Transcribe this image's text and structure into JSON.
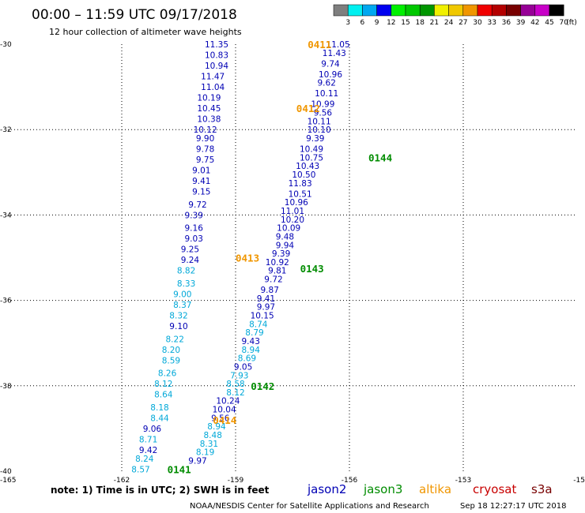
{
  "header": {
    "title": "00:00 – 11:59 UTC 09/17/2018",
    "subtitle": "12 hour collection of altimeter wave heights"
  },
  "color_scale": {
    "unit_label": "(ft)",
    "swatches": [
      {
        "label": "3",
        "color": "#7f7f7f"
      },
      {
        "label": "6",
        "color": "#00f0f0"
      },
      {
        "label": "9",
        "color": "#00a8f0"
      },
      {
        "label": "12",
        "color": "#0000f0"
      },
      {
        "label": "15",
        "color": "#00f000"
      },
      {
        "label": "18",
        "color": "#00c800"
      },
      {
        "label": "21",
        "color": "#009600"
      },
      {
        "label": "24",
        "color": "#f0f000"
      },
      {
        "label": "27",
        "color": "#f0c800"
      },
      {
        "label": "30",
        "color": "#f09600"
      },
      {
        "label": "33",
        "color": "#f00000"
      },
      {
        "label": "36",
        "color": "#b40000"
      },
      {
        "label": "39",
        "color": "#780000"
      },
      {
        "label": "42",
        "color": "#960096"
      },
      {
        "label": "45",
        "color": "#c800c8"
      },
      {
        "label": "70",
        "color": "#000000"
      }
    ]
  },
  "axes": {
    "x_ticks": [
      "-165",
      "-162",
      "-159",
      "-156",
      "-153",
      "-15"
    ],
    "y_ticks": [
      "-30",
      "-32",
      "-34",
      "-36",
      "-38",
      "-40"
    ]
  },
  "satellite_colors": {
    "jason2": "#0000b4",
    "jason3": "#008c00",
    "altika": "#f09600",
    "cryosat": "#c80000",
    "s3a": "#780000",
    "light": "#00a8d8"
  },
  "chart_data": {
    "type": "scatter",
    "xlim": [
      -165,
      -150
    ],
    "ylim": [
      -40,
      -30
    ],
    "grid": true,
    "unit": "ft",
    "points": [
      {
        "lon": -159.5,
        "lat": -30.0,
        "v": "11.35",
        "c": "jason2"
      },
      {
        "lon": -159.5,
        "lat": -30.25,
        "v": "10.83",
        "c": "jason2"
      },
      {
        "lon": -159.5,
        "lat": -30.5,
        "v": "10.94",
        "c": "jason2"
      },
      {
        "lon": -159.6,
        "lat": -30.75,
        "v": "11.47",
        "c": "jason2"
      },
      {
        "lon": -159.6,
        "lat": -31.0,
        "v": "11.04",
        "c": "jason2"
      },
      {
        "lon": -159.7,
        "lat": -31.25,
        "v": "10.19",
        "c": "jason2"
      },
      {
        "lon": -159.7,
        "lat": -31.5,
        "v": "10.45",
        "c": "jason2"
      },
      {
        "lon": -159.7,
        "lat": -31.75,
        "v": "10.38",
        "c": "jason2"
      },
      {
        "lon": -159.8,
        "lat": -32.0,
        "v": "10.12",
        "c": "jason2"
      },
      {
        "lon": -159.8,
        "lat": -32.2,
        "v": "9.90",
        "c": "jason2"
      },
      {
        "lon": -159.8,
        "lat": -32.45,
        "v": "9.78",
        "c": "jason2"
      },
      {
        "lon": -159.8,
        "lat": -32.7,
        "v": "9.75",
        "c": "jason2"
      },
      {
        "lon": -159.9,
        "lat": -32.95,
        "v": "9.01",
        "c": "jason2"
      },
      {
        "lon": -159.9,
        "lat": -33.2,
        "v": "9.41",
        "c": "jason2"
      },
      {
        "lon": -159.9,
        "lat": -33.45,
        "v": "9.15",
        "c": "jason2"
      },
      {
        "lon": -160.0,
        "lat": -33.75,
        "v": "9.72",
        "c": "jason2"
      },
      {
        "lon": -160.1,
        "lat": -34.0,
        "v": "9.39",
        "c": "jason2"
      },
      {
        "lon": -160.1,
        "lat": -34.3,
        "v": "9.16",
        "c": "jason2"
      },
      {
        "lon": -160.1,
        "lat": -34.55,
        "v": "9.03",
        "c": "jason2"
      },
      {
        "lon": -160.2,
        "lat": -34.8,
        "v": "9.25",
        "c": "jason2"
      },
      {
        "lon": -160.2,
        "lat": -35.05,
        "v": "9.24",
        "c": "jason2"
      },
      {
        "lon": -160.3,
        "lat": -35.3,
        "v": "8.82",
        "c": "light"
      },
      {
        "lon": -160.3,
        "lat": -35.6,
        "v": "8.33",
        "c": "light"
      },
      {
        "lon": -160.4,
        "lat": -35.85,
        "v": "9.00",
        "c": "light"
      },
      {
        "lon": -160.4,
        "lat": -36.1,
        "v": "8.37",
        "c": "light"
      },
      {
        "lon": -160.5,
        "lat": -36.35,
        "v": "8.32",
        "c": "light"
      },
      {
        "lon": -160.5,
        "lat": -36.6,
        "v": "9.10",
        "c": "jason2"
      },
      {
        "lon": -160.6,
        "lat": -36.9,
        "v": "8.22",
        "c": "light"
      },
      {
        "lon": -160.7,
        "lat": -37.15,
        "v": "8.20",
        "c": "light"
      },
      {
        "lon": -160.7,
        "lat": -37.4,
        "v": "8.59",
        "c": "light"
      },
      {
        "lon": -160.8,
        "lat": -37.7,
        "v": "8.26",
        "c": "light"
      },
      {
        "lon": -160.9,
        "lat": -37.95,
        "v": "8.12",
        "c": "light"
      },
      {
        "lon": -160.9,
        "lat": -38.2,
        "v": "8.64",
        "c": "light"
      },
      {
        "lon": -161.0,
        "lat": -38.5,
        "v": "8.18",
        "c": "light"
      },
      {
        "lon": -161.0,
        "lat": -38.75,
        "v": "8.44",
        "c": "light"
      },
      {
        "lon": -161.2,
        "lat": -39.0,
        "v": "9.06",
        "c": "jason2"
      },
      {
        "lon": -161.3,
        "lat": -39.25,
        "v": "8.71",
        "c": "light"
      },
      {
        "lon": -161.3,
        "lat": -39.5,
        "v": "9.42",
        "c": "jason2"
      },
      {
        "lon": -161.4,
        "lat": -39.7,
        "v": "8.24",
        "c": "light"
      },
      {
        "lon": -161.5,
        "lat": -39.95,
        "v": "8.57",
        "c": "light"
      },
      {
        "lon": -156.3,
        "lat": -30.0,
        "v": "11.05",
        "c": "jason2"
      },
      {
        "lon": -156.4,
        "lat": -30.2,
        "v": "11.43",
        "c": "jason2"
      },
      {
        "lon": -156.5,
        "lat": -30.45,
        "v": "9.74",
        "c": "jason2"
      },
      {
        "lon": -156.5,
        "lat": -30.7,
        "v": "10.96",
        "c": "jason2"
      },
      {
        "lon": -156.6,
        "lat": -30.9,
        "v": "9.62",
        "c": "jason2"
      },
      {
        "lon": -156.6,
        "lat": -31.15,
        "v": "10.11",
        "c": "jason2"
      },
      {
        "lon": -156.7,
        "lat": -31.4,
        "v": "10.99",
        "c": "jason2"
      },
      {
        "lon": -156.7,
        "lat": -31.6,
        "v": "9.56",
        "c": "jason2"
      },
      {
        "lon": -156.8,
        "lat": -31.8,
        "v": "10.11",
        "c": "jason2"
      },
      {
        "lon": -156.8,
        "lat": -32.0,
        "v": "10.10",
        "c": "jason2"
      },
      {
        "lon": -156.9,
        "lat": -32.2,
        "v": "9.39",
        "c": "jason2"
      },
      {
        "lon": -157.0,
        "lat": -32.45,
        "v": "10.49",
        "c": "jason2"
      },
      {
        "lon": -157.0,
        "lat": -32.65,
        "v": "10.75",
        "c": "jason2"
      },
      {
        "lon": -157.1,
        "lat": -32.85,
        "v": "10.43",
        "c": "jason2"
      },
      {
        "lon": -157.2,
        "lat": -33.05,
        "v": "10.50",
        "c": "jason2"
      },
      {
        "lon": -157.3,
        "lat": -33.25,
        "v": "11.83",
        "c": "jason2"
      },
      {
        "lon": -157.3,
        "lat": -33.5,
        "v": "10.51",
        "c": "jason2"
      },
      {
        "lon": -157.4,
        "lat": -33.7,
        "v": "10.96",
        "c": "jason2"
      },
      {
        "lon": -157.5,
        "lat": -33.9,
        "v": "11.01",
        "c": "jason2"
      },
      {
        "lon": -157.5,
        "lat": -34.1,
        "v": "10.20",
        "c": "jason2"
      },
      {
        "lon": -157.6,
        "lat": -34.3,
        "v": "10.09",
        "c": "jason2"
      },
      {
        "lon": -157.7,
        "lat": -34.5,
        "v": "9.48",
        "c": "jason2"
      },
      {
        "lon": -157.7,
        "lat": -34.7,
        "v": "9.94",
        "c": "jason2"
      },
      {
        "lon": -157.8,
        "lat": -34.9,
        "v": "9.39",
        "c": "jason2"
      },
      {
        "lon": -157.9,
        "lat": -35.1,
        "v": "10.92",
        "c": "jason2"
      },
      {
        "lon": -157.9,
        "lat": -35.3,
        "v": "9.81",
        "c": "jason2"
      },
      {
        "lon": -158.0,
        "lat": -35.5,
        "v": "9.72",
        "c": "jason2"
      },
      {
        "lon": -158.1,
        "lat": -35.75,
        "v": "9.87",
        "c": "jason2"
      },
      {
        "lon": -158.2,
        "lat": -35.95,
        "v": "9.41",
        "c": "jason2"
      },
      {
        "lon": -158.2,
        "lat": -36.15,
        "v": "9.97",
        "c": "jason2"
      },
      {
        "lon": -158.3,
        "lat": -36.35,
        "v": "10.15",
        "c": "jason2"
      },
      {
        "lon": -158.4,
        "lat": -36.55,
        "v": "8.74",
        "c": "light"
      },
      {
        "lon": -158.5,
        "lat": -36.75,
        "v": "8.79",
        "c": "light"
      },
      {
        "lon": -158.6,
        "lat": -36.95,
        "v": "9.43",
        "c": "jason2"
      },
      {
        "lon": -158.6,
        "lat": -37.15,
        "v": "8.94",
        "c": "light"
      },
      {
        "lon": -158.7,
        "lat": -37.35,
        "v": "8.69",
        "c": "light"
      },
      {
        "lon": -158.8,
        "lat": -37.55,
        "v": "9.05",
        "c": "jason2"
      },
      {
        "lon": -158.9,
        "lat": -37.75,
        "v": "7.93",
        "c": "light"
      },
      {
        "lon": -159.0,
        "lat": -37.95,
        "v": "8.58",
        "c": "light"
      },
      {
        "lon": -159.0,
        "lat": -38.15,
        "v": "8.12",
        "c": "light"
      },
      {
        "lon": -159.2,
        "lat": -38.35,
        "v": "10.24",
        "c": "jason2"
      },
      {
        "lon": -159.3,
        "lat": -38.55,
        "v": "10.04",
        "c": "jason2"
      },
      {
        "lon": -159.4,
        "lat": -38.75,
        "v": "9.56",
        "c": "jason2"
      },
      {
        "lon": -159.5,
        "lat": -38.95,
        "v": "8.94",
        "c": "light"
      },
      {
        "lon": -159.6,
        "lat": -39.15,
        "v": "8.48",
        "c": "light"
      },
      {
        "lon": -159.7,
        "lat": -39.35,
        "v": "8.31",
        "c": "light"
      },
      {
        "lon": -159.8,
        "lat": -39.55,
        "v": "8.19",
        "c": "light"
      },
      {
        "lon": -160.0,
        "lat": -39.75,
        "v": "9.97",
        "c": "jason2"
      }
    ],
    "pass_labels": [
      {
        "lon": -157.1,
        "lat": -30.0,
        "text": "0411",
        "c": "altika"
      },
      {
        "lon": -157.4,
        "lat": -31.5,
        "text": "0412",
        "c": "altika"
      },
      {
        "lon": -155.5,
        "lat": -32.65,
        "text": "0144",
        "c": "jason3"
      },
      {
        "lon": -159.0,
        "lat": -35.0,
        "text": "0413",
        "c": "altika"
      },
      {
        "lon": -157.3,
        "lat": -35.25,
        "text": "0143",
        "c": "jason3"
      },
      {
        "lon": -158.6,
        "lat": -38.0,
        "text": "0142",
        "c": "jason3"
      },
      {
        "lon": -159.6,
        "lat": -38.8,
        "text": "0414",
        "c": "altika"
      },
      {
        "lon": -160.8,
        "lat": -39.95,
        "text": "0141",
        "c": "jason3"
      }
    ]
  },
  "footer": {
    "note": "note:  1) Time is in UTC;  2) SWH is in feet",
    "satellites": [
      {
        "name": "jason2",
        "key": "jason2"
      },
      {
        "name": "jason3",
        "key": "jason3"
      },
      {
        "name": "altika",
        "key": "altika"
      },
      {
        "name": "cryosat",
        "key": "cryosat"
      },
      {
        "name": "s3a",
        "key": "s3a"
      }
    ],
    "credit": "NOAA/NESDIS Center for Satellite Applications and Research",
    "timestamp": "Sep 18 12:27:17 UTC 2018"
  }
}
